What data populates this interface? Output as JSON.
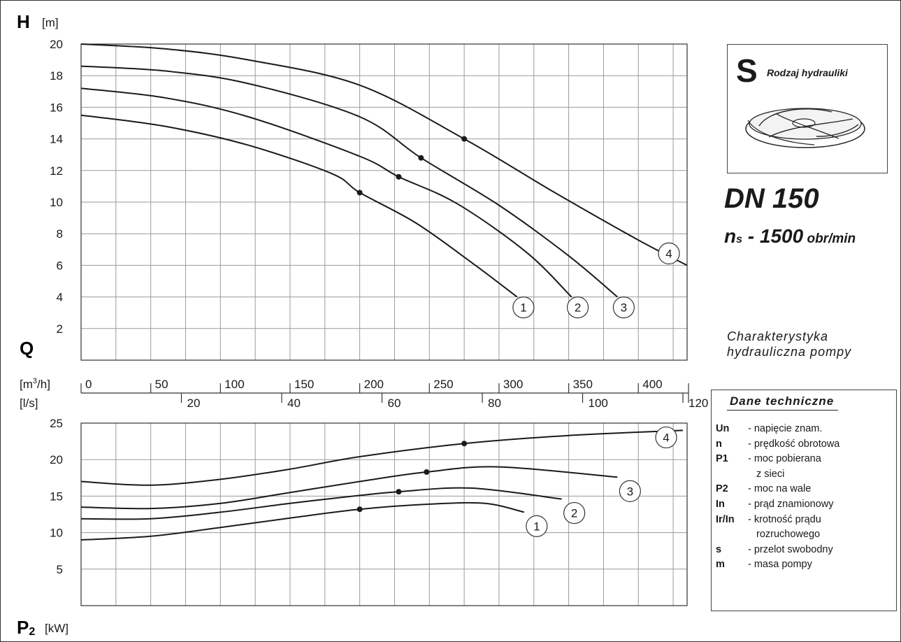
{
  "chart_data": [
    {
      "type": "line",
      "title": "",
      "ylabel_symbol": "H",
      "ylabel_unit": "[m]",
      "xlabel_symbol": "Q",
      "x_unit_m3h": "[m³/h]",
      "x_unit_ls": "[l/s]",
      "x_unit_parts": {
        "pre": "[m",
        "sup": "3",
        "post": "/h]"
      },
      "xlim_m3h": [
        0,
        435
      ],
      "ylim": [
        0,
        20
      ],
      "y_ticks": [
        2,
        4,
        6,
        8,
        10,
        12,
        14,
        16,
        18,
        20
      ],
      "x_ticks_m3h": [
        0,
        50,
        100,
        150,
        200,
        250,
        300,
        350,
        400
      ],
      "x_ticks_ls": [
        20,
        40,
        60,
        80,
        100,
        120
      ],
      "grid": true,
      "series": [
        {
          "name": "1",
          "x": [
            0,
            60,
            120,
            180,
            200,
            240,
            280,
            313
          ],
          "y": [
            15.5,
            14.8,
            13.6,
            11.8,
            10.6,
            8.7,
            6.2,
            4.0
          ],
          "marker_x": 200,
          "marker_y": 10.6
        },
        {
          "name": "2",
          "x": [
            0,
            60,
            120,
            200,
            228,
            270,
            320,
            352
          ],
          "y": [
            17.2,
            16.6,
            15.4,
            12.9,
            11.6,
            9.9,
            6.8,
            4.0
          ],
          "marker_x": 228,
          "marker_y": 11.6
        },
        {
          "name": "3",
          "x": [
            0,
            60,
            120,
            200,
            244,
            300,
            350,
            385
          ],
          "y": [
            18.6,
            18.3,
            17.5,
            15.4,
            12.8,
            9.8,
            6.6,
            4.0
          ],
          "marker_x": 244,
          "marker_y": 12.8
        },
        {
          "name": "4",
          "x": [
            0,
            60,
            120,
            200,
            275,
            340,
            400,
            435
          ],
          "y": [
            20.0,
            19.7,
            19.0,
            17.4,
            14.0,
            10.6,
            7.6,
            6.0
          ],
          "marker_x": 275,
          "marker_y": 14.0
        }
      ]
    },
    {
      "type": "line",
      "title": "",
      "ylabel_symbol": "P",
      "ylabel_sub": "2",
      "ylabel_unit": "[kW]",
      "xlim_m3h": [
        0,
        435
      ],
      "ylim": [
        0,
        25
      ],
      "y_ticks": [
        5,
        10,
        15,
        20,
        25
      ],
      "grid": true,
      "series": [
        {
          "name": "1",
          "x": [
            0,
            50,
            100,
            150,
            200,
            250,
            290,
            318
          ],
          "y": [
            9.0,
            9.5,
            10.7,
            12.0,
            13.2,
            13.9,
            14.0,
            12.8
          ],
          "marker_x": 200,
          "marker_y": 13.2
        },
        {
          "name": "2",
          "x": [
            0,
            50,
            100,
            150,
            200,
            228,
            280,
            345
          ],
          "y": [
            11.9,
            11.9,
            12.8,
            14.0,
            15.1,
            15.6,
            16.1,
            14.6
          ],
          "marker_x": 228,
          "marker_y": 15.6
        },
        {
          "name": "3",
          "x": [
            0,
            50,
            100,
            150,
            200,
            248,
            300,
            385
          ],
          "y": [
            13.5,
            13.3,
            14.0,
            15.5,
            17.0,
            18.3,
            19.0,
            17.6
          ],
          "marker_x": 248,
          "marker_y": 18.3
        },
        {
          "name": "4",
          "x": [
            0,
            50,
            100,
            150,
            200,
            275,
            350,
            432
          ],
          "y": [
            17.0,
            16.5,
            17.3,
            18.7,
            20.4,
            22.2,
            23.3,
            24.0
          ],
          "marker_x": 275,
          "marker_y": 22.2
        }
      ]
    }
  ],
  "hydraulics_box": {
    "letter": "S",
    "caption": "Rodzaj hydrauliki"
  },
  "model": "DN 150",
  "speed": {
    "symbol": "n",
    "sub": "s",
    "value": " - 1500",
    "unit": " obr/min"
  },
  "chart_caption": [
    "Charakterystyka",
    "hydrauliczna pompy"
  ],
  "legend_box": {
    "title": "Dane techniczne",
    "rows": [
      {
        "key": "Un",
        "desc": "- napięcie znam."
      },
      {
        "key": "n",
        "desc": "- prędkość obrotowa"
      },
      {
        "key": "P1",
        "desc": "- moc pobierana"
      },
      {
        "key": "",
        "desc": "z sieci"
      },
      {
        "key": "P2",
        "desc": "- moc na wale"
      },
      {
        "key": "In",
        "desc": "- prąd znamionowy"
      },
      {
        "key": "Ir/In",
        "desc": "- krotność prądu"
      },
      {
        "key": "",
        "desc": "rozruchowego"
      },
      {
        "key": "s",
        "desc": "- przelot swobodny"
      },
      {
        "key": "m",
        "desc": "- masa pompy"
      }
    ]
  },
  "colors": {
    "line": "#1a1a1a",
    "grid": "#9a9a9a",
    "background": "#ffffff"
  }
}
